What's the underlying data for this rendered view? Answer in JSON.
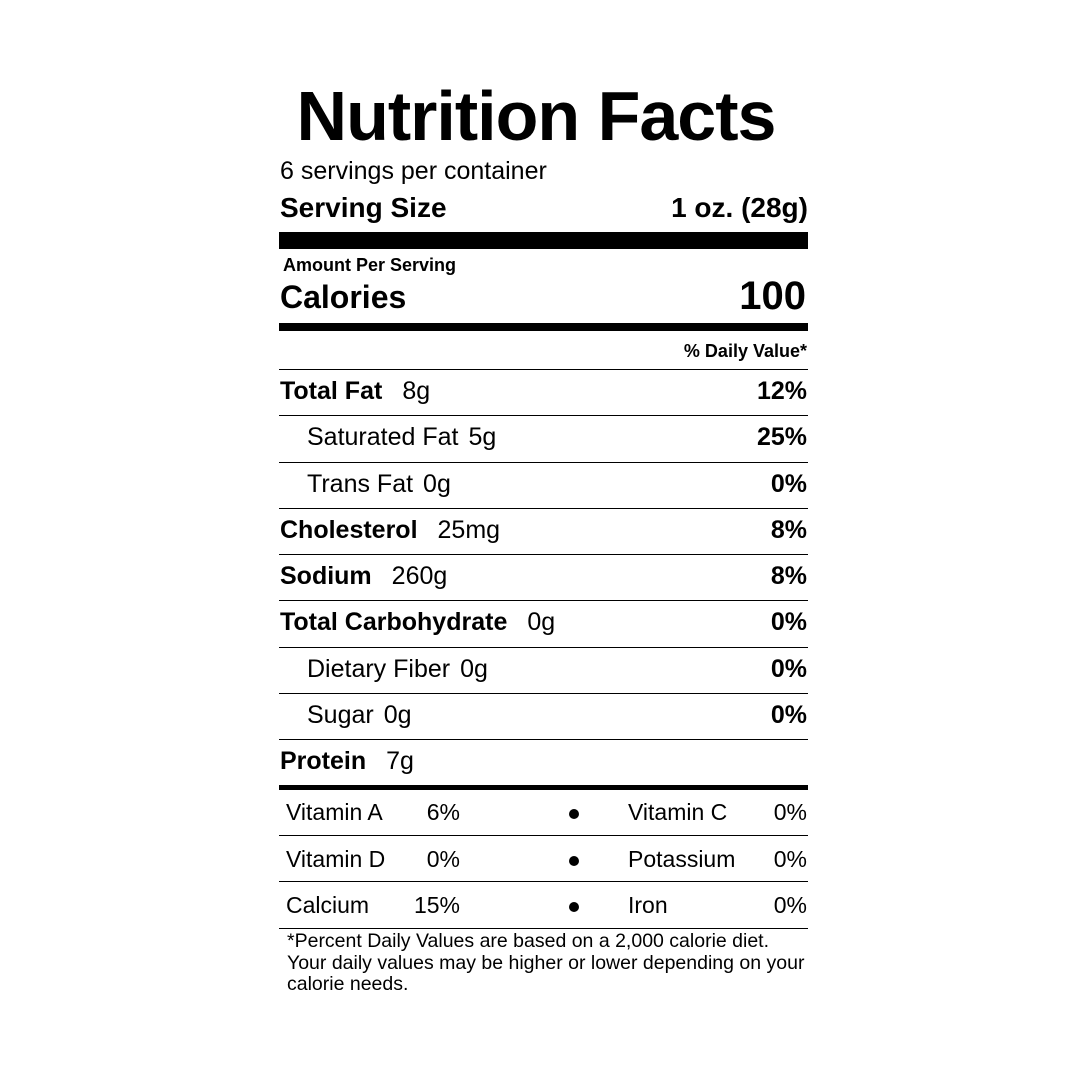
{
  "title": "Nutrition Facts",
  "servings": "6 servings per container",
  "serving_size": {
    "label": "Serving Size",
    "value": "1 oz. (28g)"
  },
  "amount_per_serving": "Amount Per Serving",
  "calories": {
    "label": "Calories",
    "value": "100"
  },
  "daily_value_header": "% Daily Value*",
  "nutrients": [
    {
      "name": "Total Fat",
      "amount": "8g",
      "dv": "12%",
      "sub": false
    },
    {
      "name": "Saturated Fat",
      "amount": "5g",
      "dv": "25%",
      "sub": true
    },
    {
      "name": "Trans Fat",
      "amount": "0g",
      "dv": "0%",
      "sub": true
    },
    {
      "name": "Cholesterol",
      "amount": "25mg",
      "dv": "8%",
      "sub": false
    },
    {
      "name": "Sodium",
      "amount": "260g",
      "dv": "8%",
      "sub": false
    },
    {
      "name": "Total Carbohydrate",
      "amount": "0g",
      "dv": "0%",
      "sub": false
    },
    {
      "name": "Dietary Fiber",
      "amount": "0g",
      "dv": "0%",
      "sub": true
    },
    {
      "name": "Sugar",
      "amount": "0g",
      "dv": "0%",
      "sub": true
    },
    {
      "name": "Protein",
      "amount": "7g",
      "sub": false
    }
  ],
  "vitamin_rows": [
    [
      {
        "name": "Vitamin A",
        "value": "6%"
      },
      {
        "name": "Vitamin C",
        "value": "0%"
      }
    ],
    [
      {
        "name": "Vitamin D",
        "value": "0%"
      },
      {
        "name": "Potassium",
        "value": "0%"
      }
    ],
    [
      {
        "name": "Calcium",
        "value": "15%"
      },
      {
        "name": "Iron",
        "value": "0%"
      }
    ]
  ],
  "footnote": "*Percent Daily Values are based on a 2,000 calorie diet. Your daily values may be higher or lower depending on your calorie needs."
}
